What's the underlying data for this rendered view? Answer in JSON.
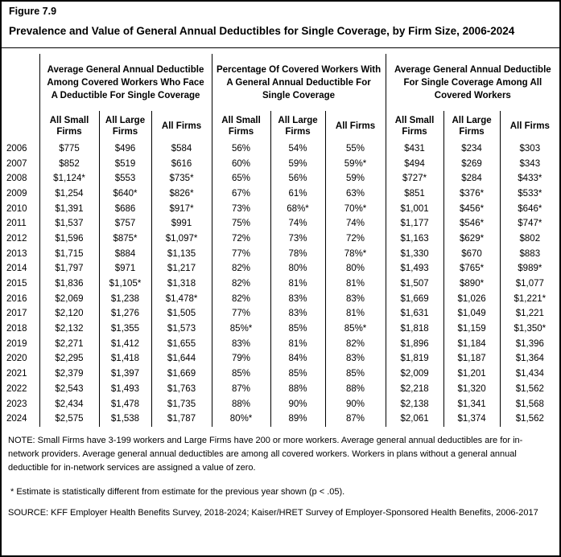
{
  "header": {
    "figure_number": "Figure 7.9",
    "title": "Prevalence and Value of General Annual Deductibles for Single Coverage, by Firm Size, 2006-2024"
  },
  "colors": {
    "text": "#000000",
    "background": "#ffffff",
    "border": "#000000"
  },
  "chart_data": {
    "type": "table",
    "title": "Prevalence and Value of General Annual Deductibles for Single Coverage, by Firm Size, 2006-2024",
    "column_groups": [
      "Average General Annual Deductible Among Covered Workers Who Face A Deductible For Single Coverage",
      "Percentage Of Covered Workers With A General Annual Deductible For Single Coverage",
      "Average General Annual Deductible For Single Coverage Among All Covered Workers"
    ],
    "subcolumns": [
      "All Small Firms",
      "All Large Firms",
      "All Firms"
    ],
    "rows": [
      {
        "year": "2006",
        "values": [
          "$775",
          "$496",
          "$584",
          "56%",
          "54%",
          "55%",
          "$431",
          "$234",
          "$303"
        ]
      },
      {
        "year": "2007",
        "values": [
          "$852",
          "$519",
          "$616",
          "60%",
          "59%",
          "59%*",
          "$494",
          "$269",
          "$343"
        ]
      },
      {
        "year": "2008",
        "values": [
          "$1,124*",
          "$553",
          "$735*",
          "65%",
          "56%",
          "59%",
          "$727*",
          "$284",
          "$433*"
        ]
      },
      {
        "year": "2009",
        "values": [
          "$1,254",
          "$640*",
          "$826*",
          "67%",
          "61%",
          "63%",
          "$851",
          "$376*",
          "$533*"
        ]
      },
      {
        "year": "2010",
        "values": [
          "$1,391",
          "$686",
          "$917*",
          "73%",
          "68%*",
          "70%*",
          "$1,001",
          "$456*",
          "$646*"
        ]
      },
      {
        "year": "2011",
        "values": [
          "$1,537",
          "$757",
          "$991",
          "75%",
          "74%",
          "74%",
          "$1,177",
          "$546*",
          "$747*"
        ]
      },
      {
        "year": "2012",
        "values": [
          "$1,596",
          "$875*",
          "$1,097*",
          "72%",
          "73%",
          "72%",
          "$1,163",
          "$629*",
          "$802"
        ]
      },
      {
        "year": "2013",
        "values": [
          "$1,715",
          "$884",
          "$1,135",
          "77%",
          "78%",
          "78%*",
          "$1,330",
          "$670",
          "$883"
        ]
      },
      {
        "year": "2014",
        "values": [
          "$1,797",
          "$971",
          "$1,217",
          "82%",
          "80%",
          "80%",
          "$1,493",
          "$765*",
          "$989*"
        ]
      },
      {
        "year": "2015",
        "values": [
          "$1,836",
          "$1,105*",
          "$1,318",
          "82%",
          "81%",
          "81%",
          "$1,507",
          "$890*",
          "$1,077"
        ]
      },
      {
        "year": "2016",
        "values": [
          "$2,069",
          "$1,238",
          "$1,478*",
          "82%",
          "83%",
          "83%",
          "$1,669",
          "$1,026",
          "$1,221*"
        ]
      },
      {
        "year": "2017",
        "values": [
          "$2,120",
          "$1,276",
          "$1,505",
          "77%",
          "83%",
          "81%",
          "$1,631",
          "$1,049",
          "$1,221"
        ]
      },
      {
        "year": "2018",
        "values": [
          "$2,132",
          "$1,355",
          "$1,573",
          "85%*",
          "85%",
          "85%*",
          "$1,818",
          "$1,159",
          "$1,350*"
        ]
      },
      {
        "year": "2019",
        "values": [
          "$2,271",
          "$1,412",
          "$1,655",
          "83%",
          "81%",
          "82%",
          "$1,896",
          "$1,184",
          "$1,396"
        ]
      },
      {
        "year": "2020",
        "values": [
          "$2,295",
          "$1,418",
          "$1,644",
          "79%",
          "84%",
          "83%",
          "$1,819",
          "$1,187",
          "$1,364"
        ]
      },
      {
        "year": "2021",
        "values": [
          "$2,379",
          "$1,397",
          "$1,669",
          "85%",
          "85%",
          "85%",
          "$2,009",
          "$1,201",
          "$1,434"
        ]
      },
      {
        "year": "2022",
        "values": [
          "$2,543",
          "$1,493",
          "$1,763",
          "87%",
          "88%",
          "88%",
          "$2,218",
          "$1,320",
          "$1,562"
        ]
      },
      {
        "year": "2023",
        "values": [
          "$2,434",
          "$1,478",
          "$1,735",
          "88%",
          "90%",
          "90%",
          "$2,138",
          "$1,341",
          "$1,568"
        ]
      },
      {
        "year": "2024",
        "values": [
          "$2,575",
          "$1,538",
          "$1,787",
          "80%*",
          "89%",
          "87%",
          "$2,061",
          "$1,374",
          "$1,562"
        ]
      }
    ]
  },
  "notes": {
    "note": "NOTE: Small Firms have 3-199 workers and Large Firms have 200 or more workers. Average general annual deductibles are for in-network providers. Average general annual deductibles are among all covered workers. Workers in plans without a general annual deductible for in-network services are assigned a value of zero.",
    "footnote": "* Estimate is statistically different from estimate for the previous year shown (p < .05).",
    "source": "SOURCE: KFF Employer Health Benefits Survey, 2018-2024; Kaiser/HRET Survey of Employer-Sponsored Health Benefits, 2006-2017"
  }
}
